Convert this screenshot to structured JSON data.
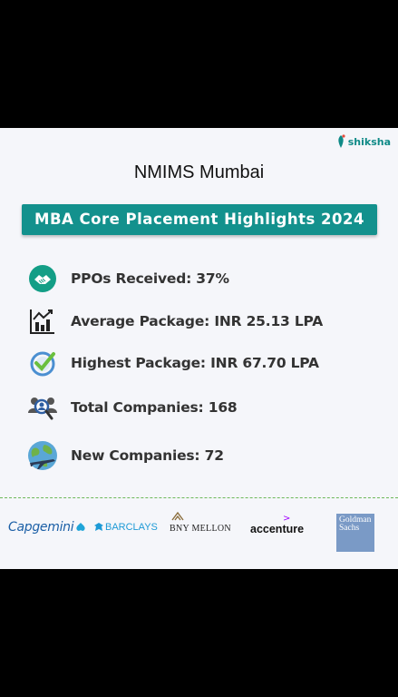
{
  "brand": {
    "name": "shiksha"
  },
  "page": {
    "title": "NMIMS Mumbai"
  },
  "banner": {
    "text": "MBA Core Placement Highlights 2024"
  },
  "stats": [
    {
      "icon": "handshake-icon",
      "label": "PPOs Received: 37%"
    },
    {
      "icon": "bar-chart-icon",
      "label": "Average Package: INR 25.13 LPA"
    },
    {
      "icon": "check-badge-icon",
      "label": "Highest Package: INR 67.70 LPA"
    },
    {
      "icon": "people-search-icon",
      "label": "Total Companies: 168"
    },
    {
      "icon": "globe-plane-icon",
      "label": "New Companies: 72"
    }
  ],
  "recruiters": [
    {
      "name": "Capgemini"
    },
    {
      "name": "BARCLAYS"
    },
    {
      "name": "BNY MELLON"
    },
    {
      "name": "accenture"
    },
    {
      "name": "Goldman Sachs"
    }
  ],
  "colors": {
    "accent": "#13918d",
    "divider": "#6cb85a",
    "brand": "#0f8a87"
  }
}
